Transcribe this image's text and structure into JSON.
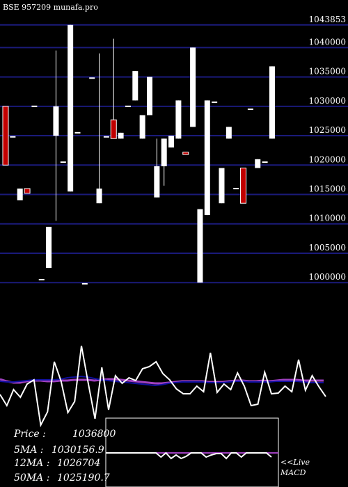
{
  "header": {
    "title": "BSE 957209 munafa.pro"
  },
  "stats": {
    "price_label": "Price   :",
    "price_value": "1036800",
    "ma5_label": "5MA :",
    "ma5_value": "1030156.9",
    "ma12_label": "12MA :",
    "ma12_value": "1026704",
    "ma50_label": "50MA :",
    "ma50_value": "1025190.7"
  },
  "live_link": {
    "line1": "<<Live",
    "line2": "MACD"
  },
  "colors": {
    "background": "#000000",
    "gridline": "#1a1a7a",
    "up_candle": "#ffffff",
    "down_candle": "#c00000",
    "ma_line": "#ffffff",
    "long_ma": "#a040c0",
    "short_ma": "#1010a0"
  },
  "chart_data": {
    "type": "candlestick",
    "ylim": [
      996000,
      1047500
    ],
    "y_ticks": [
      {
        "value": 1043853,
        "label": "1043853"
      },
      {
        "value": 1040000,
        "label": "1040000"
      },
      {
        "value": 1035000,
        "label": "1035000"
      },
      {
        "value": 1030000,
        "label": "1030000"
      },
      {
        "value": 1025000,
        "label": "1025000"
      },
      {
        "value": 1020000,
        "label": "1020000"
      },
      {
        "value": 1015000,
        "label": "1015000"
      },
      {
        "value": 1010000,
        "label": "1010000"
      },
      {
        "value": 1005000,
        "label": "1005000"
      },
      {
        "value": 1000000,
        "label": "1000000"
      }
    ],
    "candles": [
      {
        "o": 1030000,
        "c": 1020000,
        "h": 1030000,
        "l": 1020000,
        "dir": "down"
      },
      {
        "o": 1024800,
        "c": 1024800,
        "h": 1024800,
        "l": 1024800,
        "dir": "flat"
      },
      {
        "o": 1014000,
        "c": 1016000,
        "h": 1016000,
        "l": 1014000,
        "dir": "up"
      },
      {
        "o": 1016000,
        "c": 1015200,
        "h": 1016000,
        "l": 1015200,
        "dir": "down"
      },
      {
        "o": 1030000,
        "c": 1030000,
        "h": 1030000,
        "l": 1030000,
        "dir": "flat"
      },
      {
        "o": 1000500,
        "c": 1000500,
        "h": 1000500,
        "l": 1000500,
        "dir": "flat"
      },
      {
        "o": 1002500,
        "c": 1009500,
        "h": 1009500,
        "l": 1002500,
        "dir": "up"
      },
      {
        "o": 1025000,
        "c": 1030000,
        "h": 1039500,
        "l": 1010500,
        "dir": "up"
      },
      {
        "o": 1020500,
        "c": 1020500,
        "h": 1020500,
        "l": 1020500,
        "dir": "flat"
      },
      {
        "o": 1015500,
        "c": 1043853,
        "h": 1043853,
        "l": 1015500,
        "dir": "up"
      },
      {
        "o": 1025500,
        "c": 1025500,
        "h": 1025500,
        "l": 1025500,
        "dir": "flat"
      },
      {
        "o": 999800,
        "c": 999800,
        "h": 999800,
        "l": 999800,
        "dir": "flat"
      },
      {
        "o": 1034800,
        "c": 1034800,
        "h": 1034800,
        "l": 1034800,
        "dir": "flat"
      },
      {
        "o": 1013500,
        "c": 1016000,
        "h": 1039000,
        "l": 1013500,
        "dir": "up"
      },
      {
        "o": 1024800,
        "c": 1024800,
        "h": 1024800,
        "l": 1024800,
        "dir": "flat"
      },
      {
        "o": 1027700,
        "c": 1024500,
        "h": 1041500,
        "l": 1024500,
        "dir": "down"
      },
      {
        "o": 1024500,
        "c": 1025500,
        "h": 1025500,
        "l": 1024500,
        "dir": "up"
      },
      {
        "o": 1030000,
        "c": 1030000,
        "h": 1030000,
        "l": 1030000,
        "dir": "flat"
      },
      {
        "o": 1031000,
        "c": 1036000,
        "h": 1036000,
        "l": 1031000,
        "dir": "up"
      },
      {
        "o": 1024500,
        "c": 1028500,
        "h": 1028500,
        "l": 1024500,
        "dir": "up"
      },
      {
        "o": 1028500,
        "c": 1035000,
        "h": 1035000,
        "l": 1028500,
        "dir": "up"
      },
      {
        "o": 1014500,
        "c": 1019800,
        "h": 1024500,
        "l": 1014500,
        "dir": "up"
      },
      {
        "o": 1019800,
        "c": 1024500,
        "h": 1024500,
        "l": 1016500,
        "dir": "up"
      },
      {
        "o": 1023000,
        "c": 1025000,
        "h": 1025000,
        "l": 1023000,
        "dir": "up"
      },
      {
        "o": 1024500,
        "c": 1031000,
        "h": 1031000,
        "l": 1024500,
        "dir": "up"
      },
      {
        "o": 1022200,
        "c": 1021800,
        "h": 1022200,
        "l": 1021800,
        "dir": "down"
      },
      {
        "o": 1026500,
        "c": 1040000,
        "h": 1040000,
        "l": 1026500,
        "dir": "up"
      },
      {
        "o": 1000000,
        "c": 1012500,
        "h": 1012500,
        "l": 1000000,
        "dir": "up"
      },
      {
        "o": 1011500,
        "c": 1031000,
        "h": 1031000,
        "l": 1011500,
        "dir": "up"
      },
      {
        "o": 1030700,
        "c": 1030700,
        "h": 1030700,
        "l": 1030700,
        "dir": "flat"
      },
      {
        "o": 1013500,
        "c": 1019500,
        "h": 1019500,
        "l": 1013500,
        "dir": "up"
      },
      {
        "o": 1024500,
        "c": 1026500,
        "h": 1026500,
        "l": 1024500,
        "dir": "up"
      },
      {
        "o": 1016000,
        "c": 1016000,
        "h": 1016000,
        "l": 1016000,
        "dir": "flat"
      },
      {
        "o": 1019500,
        "c": 1013500,
        "h": 1019500,
        "l": 1013500,
        "dir": "down"
      },
      {
        "o": 1029500,
        "c": 1029500,
        "h": 1029500,
        "l": 1029500,
        "dir": "flat"
      },
      {
        "o": 1019500,
        "c": 1021000,
        "h": 1021000,
        "l": 1019500,
        "dir": "up"
      },
      {
        "o": 1020500,
        "c": 1020500,
        "h": 1020500,
        "l": 1020500,
        "dir": "flat"
      },
      {
        "o": 1024500,
        "c": 1036800,
        "h": 1036800,
        "l": 1024500,
        "dir": "up"
      }
    ],
    "indicator": {
      "levels": [
        567,
        583,
        560,
        571,
        552,
        546,
        611,
        592,
        520,
        548,
        593,
        577,
        497,
        551,
        602,
        528,
        589,
        540,
        551,
        543,
        547,
        530,
        527,
        520,
        537,
        546,
        559,
        566,
        566,
        555,
        563,
        507,
        564,
        552,
        560,
        536,
        555,
        583,
        581,
        535,
        566,
        565,
        555,
        563,
        517,
        561,
        540,
        556,
        570
      ],
      "long_ma": [
        545,
        548,
        550,
        550,
        548,
        547,
        547,
        548,
        548,
        547,
        547,
        546,
        546,
        546,
        547,
        546,
        545,
        545,
        546,
        547,
        548,
        549,
        550,
        551,
        551,
        550,
        549,
        548,
        548,
        548,
        548,
        549,
        549,
        549,
        548,
        547,
        547,
        548,
        548,
        547,
        548,
        547,
        546,
        546,
        546,
        547,
        547,
        547,
        547
      ],
      "short_ma": [
        548,
        549,
        549,
        548,
        547,
        546,
        546,
        546,
        546,
        545,
        543,
        542,
        541,
        542,
        544,
        546,
        547,
        548,
        549,
        550,
        551,
        552,
        553,
        554,
        553,
        551,
        550,
        549,
        549,
        549,
        549,
        550,
        550,
        550,
        549,
        548,
        548,
        549,
        549,
        549,
        549,
        548,
        548,
        548,
        548,
        549,
        550,
        550,
        550
      ]
    },
    "macd": {
      "signal": 651,
      "macd": [
        651,
        651,
        651,
        651,
        651,
        651,
        651,
        651,
        651,
        651,
        651,
        657,
        651,
        659,
        654,
        659,
        656,
        651,
        651,
        651,
        657,
        654,
        652,
        652,
        659,
        651,
        651,
        657,
        651,
        651,
        651,
        651,
        651,
        657
      ]
    }
  }
}
